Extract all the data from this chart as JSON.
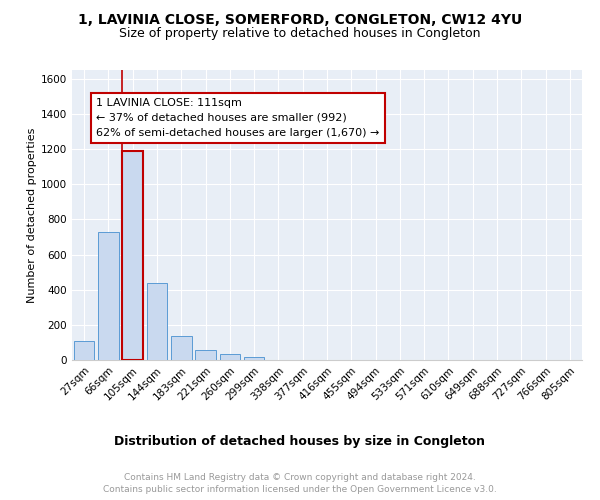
{
  "title": "1, LAVINIA CLOSE, SOMERFORD, CONGLETON, CW12 4YU",
  "subtitle": "Size of property relative to detached houses in Congleton",
  "xlabel": "Distribution of detached houses by size in Congleton",
  "ylabel": "Number of detached properties",
  "bin_labels": [
    "27sqm",
    "66sqm",
    "105sqm",
    "144sqm",
    "183sqm",
    "221sqm",
    "260sqm",
    "299sqm",
    "338sqm",
    "377sqm",
    "416sqm",
    "455sqm",
    "494sqm",
    "533sqm",
    "571sqm",
    "610sqm",
    "649sqm",
    "688sqm",
    "727sqm",
    "766sqm",
    "805sqm"
  ],
  "bar_values": [
    110,
    730,
    1190,
    440,
    135,
    57,
    32,
    15,
    0,
    0,
    0,
    0,
    0,
    0,
    0,
    0,
    0,
    0,
    0,
    0,
    0
  ],
  "bar_color": "#c9d9ef",
  "bar_edge_color": "#5b9bd5",
  "highlight_bar_index": 2,
  "highlight_line_color": "#c00000",
  "annotation_line1": "1 LAVINIA CLOSE: 111sqm",
  "annotation_line2": "← 37% of detached houses are smaller (992)",
  "annotation_line3": "62% of semi-detached houses are larger (1,670) →",
  "annotation_box_color": "#ffffff",
  "annotation_box_edge": "#c00000",
  "ylim": [
    0,
    1650
  ],
  "yticks": [
    0,
    200,
    400,
    600,
    800,
    1000,
    1200,
    1400,
    1600
  ],
  "background_color": "#e8eef6",
  "footer_line1": "Contains HM Land Registry data © Crown copyright and database right 2024.",
  "footer_line2": "Contains public sector information licensed under the Open Government Licence v3.0.",
  "title_fontsize": 10,
  "subtitle_fontsize": 9,
  "annotation_fontsize": 8,
  "tick_fontsize": 7.5,
  "ylabel_fontsize": 8,
  "xlabel_fontsize": 9
}
